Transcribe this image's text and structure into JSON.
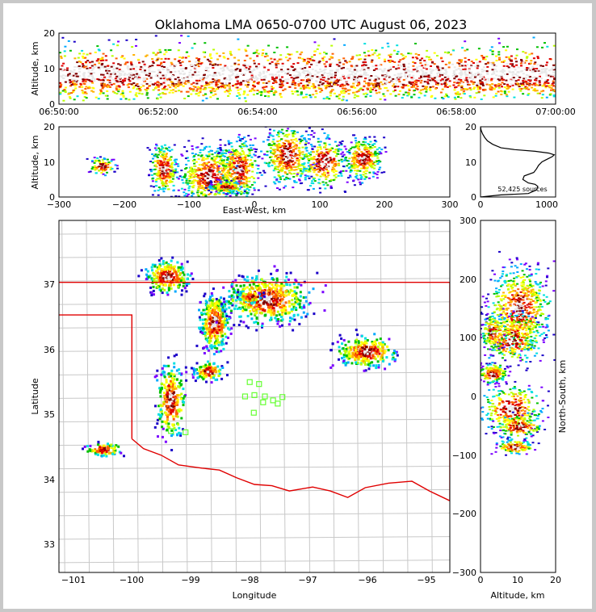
{
  "title": "Oklahoma LMA 0650-0700 UTC August 06, 2023",
  "sources_label": "52,425 sources",
  "chart_data": [
    {
      "type": "heatmap",
      "panel": "altitude-time",
      "ylabel": "Altitude, km",
      "ylim": [
        0,
        20
      ],
      "yticks": [
        "0",
        "10",
        "20"
      ],
      "xticks": [
        "06:50:00",
        "06:52:00",
        "06:54:00",
        "06:56:00",
        "06:58:00",
        "07:00:00"
      ]
    },
    {
      "type": "heatmap",
      "panel": "altitude-eastwest",
      "xlabel": "East-West, km",
      "ylabel": "Altitude, km",
      "xlim": [
        -300,
        300
      ],
      "ylim": [
        0,
        20
      ],
      "xticks": [
        "−300",
        "−200",
        "−100",
        "0",
        "100",
        "200",
        "300"
      ],
      "yticks": [
        "0",
        "10",
        "20"
      ]
    },
    {
      "type": "line",
      "panel": "altitude-histogram",
      "xlim": [
        0,
        1100
      ],
      "ylim": [
        0,
        20
      ],
      "xticks": [
        "0",
        "1000"
      ],
      "yticks": [
        "0",
        "10",
        "20"
      ],
      "x": [
        0,
        300,
        700,
        820,
        840,
        800,
        700,
        620,
        640,
        780,
        820,
        850,
        900,
        950,
        1000,
        1050,
        1080,
        1000,
        800,
        500,
        300,
        180,
        100,
        60,
        30,
        10,
        0
      ],
      "y": [
        0,
        0.6,
        1,
        2,
        3,
        3.6,
        4,
        5,
        6,
        7,
        8,
        9,
        10,
        10.5,
        11,
        11.5,
        12,
        12.5,
        13,
        13.5,
        14,
        15,
        16,
        17,
        18,
        19,
        20
      ]
    },
    {
      "type": "heatmap",
      "panel": "plan-view",
      "xlabel": "Longitude",
      "ylabel": "Latitude",
      "xlim": [
        -101.25,
        -94.55
      ],
      "ylim": [
        32.55,
        37.95
      ],
      "xticks": [
        "−101",
        "−100",
        "−99",
        "−98",
        "−97",
        "−96",
        "−95"
      ],
      "yticks": [
        "33",
        "34",
        "35",
        "36",
        "37"
      ],
      "clusters": [
        {
          "lon": -99.4,
          "lat": 37.1
        },
        {
          "lon": -98.6,
          "lat": 36.4
        },
        {
          "lon": -97.7,
          "lat": 36.75
        },
        {
          "lon": -96.0,
          "lat": 35.95
        },
        {
          "lon": -99.35,
          "lat": 35.2
        },
        {
          "lon": -98.7,
          "lat": 35.65
        },
        {
          "lon": -100.5,
          "lat": 34.45
        },
        {
          "lon": -98.0,
          "lat": 36.8
        }
      ],
      "stations": [
        {
          "lon": -97.98,
          "lat": 35.47
        },
        {
          "lon": -97.82,
          "lat": 35.44
        },
        {
          "lon": -98.06,
          "lat": 35.25
        },
        {
          "lon": -97.9,
          "lat": 35.27
        },
        {
          "lon": -97.72,
          "lat": 35.25
        },
        {
          "lon": -97.58,
          "lat": 35.19
        },
        {
          "lon": -97.42,
          "lat": 35.24
        },
        {
          "lon": -97.75,
          "lat": 35.16
        },
        {
          "lon": -97.5,
          "lat": 35.14
        },
        {
          "lon": -97.91,
          "lat": 35.0
        },
        {
          "lon": -99.08,
          "lat": 34.7
        },
        {
          "lon": -99.33,
          "lat": 34.72
        }
      ]
    },
    {
      "type": "heatmap",
      "panel": "north-south-altitude",
      "xlabel": "Altitude, km",
      "ylabel": "North-South, km",
      "xlim": [
        0,
        20
      ],
      "ylim": [
        -300,
        300
      ],
      "xticks": [
        "0",
        "10",
        "20"
      ],
      "yticks": [
        "−300",
        "−200",
        "−100",
        "0",
        "100",
        "200",
        "300"
      ]
    }
  ]
}
